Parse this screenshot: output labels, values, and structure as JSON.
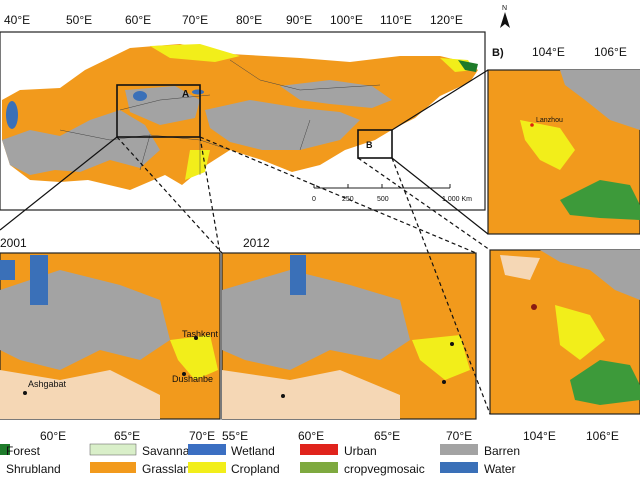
{
  "main_map": {
    "top_lon_ticks": [
      "40°E",
      "50°E",
      "60°E",
      "70°E",
      "80°E",
      "90°E",
      "100°E",
      "110°E",
      "120°E"
    ],
    "box_a_label": "A",
    "box_b_label": "B",
    "scale_bar": {
      "ticks": [
        "0",
        "250",
        "500",
        "1,000 Km"
      ]
    },
    "north_label": "N"
  },
  "panel_b": {
    "label": "B)",
    "lon_ticks_top": [
      "104°E",
      "106°E"
    ],
    "lon_ticks_bottom": [
      "104°E",
      "106°E"
    ],
    "city": "Lanzhou"
  },
  "panel_a1": {
    "year": "2001",
    "cities": [
      "Tashkent",
      "Dushanbe",
      "Ashgabat"
    ]
  },
  "panel_a2": {
    "year": "2012"
  },
  "bottom_lon_ticks": [
    "60°E",
    "65°E",
    "70°E",
    "55°E",
    "60°E",
    "65°E",
    "70°E"
  ],
  "legend": {
    "items": [
      {
        "label": "Forest",
        "color": "#1e7b2a"
      },
      {
        "label": "Savanna",
        "color": "#d9efc9"
      },
      {
        "label": "Wetland",
        "color": "#3b6fc2"
      },
      {
        "label": "Urban",
        "color": "#e0231c"
      },
      {
        "label": "Barren",
        "color": "#a3a3a3"
      },
      {
        "label": "Shrubland",
        "color": "#f5d7b5"
      },
      {
        "label": "Grassland",
        "color": "#f29a1c"
      },
      {
        "label": "Cropland",
        "color": "#f2ee1a"
      },
      {
        "label": "cropvegmosaic",
        "color": "#7ea93f"
      },
      {
        "label": "Water",
        "color": "#3a70b8"
      }
    ]
  }
}
